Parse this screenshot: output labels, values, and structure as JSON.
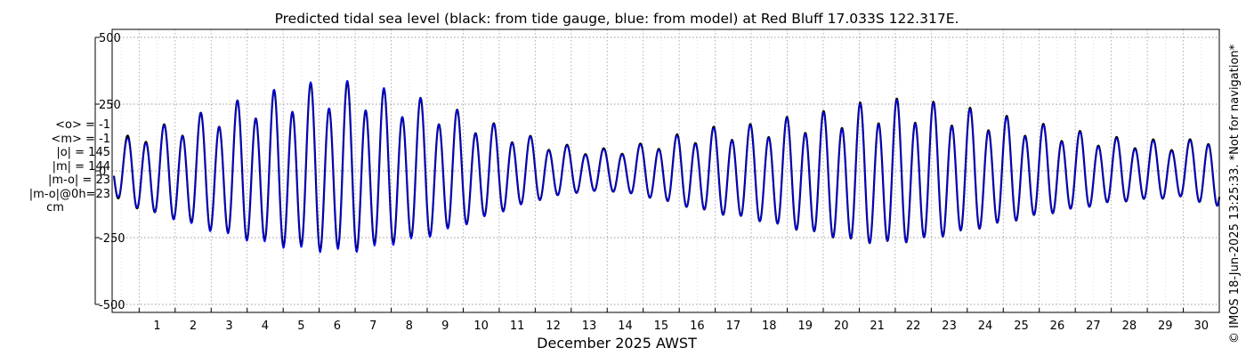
{
  "chart_data": {
    "type": "line",
    "title": "Predicted tidal sea level (black: from tide gauge, blue: from model) at Red Bluff 17.033S 122.317E.",
    "xlabel": "December 2025 AWST",
    "ylabel": "",
    "xlim": [
      0.25,
      31.0
    ],
    "ylim": [
      -530,
      530
    ],
    "xticks": [
      "1",
      "2",
      "3",
      "4",
      "5",
      "6",
      "7",
      "8",
      "9",
      "10",
      "11",
      "12",
      "13",
      "14",
      "15",
      "16",
      "17",
      "18",
      "19",
      "20",
      "21",
      "22",
      "23",
      "24",
      "25",
      "26",
      "27",
      "28",
      "29",
      "30"
    ],
    "yticks": [
      {
        "value": 500,
        "label": "500"
      },
      {
        "value": 250,
        "label": "250"
      },
      {
        "value": 0,
        "label": "0"
      },
      {
        "value": -250,
        "label": "-250"
      },
      {
        "value": -500,
        "label": "-500"
      }
    ],
    "grid": true,
    "series": [
      {
        "color": "#000000",
        "width": 2.2,
        "x_start": 0.3,
        "x_end": 31.0,
        "x": [
          0.3,
          1,
          2,
          3,
          4,
          5,
          6,
          7,
          8,
          9,
          10,
          11,
          12,
          13,
          14,
          15,
          16,
          17,
          18,
          19,
          20,
          21,
          22,
          23,
          24,
          25,
          26,
          27,
          28,
          29,
          30,
          31
        ],
        "amplitude": [
          105,
          150,
          185,
          230,
          270,
          300,
          320,
          320,
          290,
          260,
          215,
          165,
          120,
          90,
          80,
          100,
          135,
          165,
          180,
          210,
          235,
          265,
          275,
          260,
          235,
          205,
          175,
          150,
          125,
          115,
          105,
          150
        ],
        "mean": [
          -3,
          -6,
          -12,
          -12,
          -10,
          -6,
          -4,
          -4,
          -6,
          -8,
          -6,
          -4,
          -2,
          -1,
          -1,
          -2,
          -4,
          -8,
          -15,
          -20,
          -25,
          -25,
          -20,
          -15,
          -10,
          -8,
          -6,
          -6,
          -4,
          -2,
          -2,
          0
        ]
      },
      {
        "color": "#0000ee",
        "width": 1.5,
        "x_start": 0.3,
        "x_end": 31.0,
        "x": [
          0.3,
          1,
          2,
          3,
          4,
          5,
          6,
          7,
          8,
          9,
          10,
          11,
          12,
          13,
          14,
          15,
          16,
          17,
          18,
          19,
          20,
          21,
          22,
          23,
          24,
          25,
          26,
          27,
          28,
          29,
          30,
          31
        ],
        "amplitude": [
          95,
          145,
          185,
          232,
          272,
          305,
          325,
          325,
          295,
          262,
          215,
          165,
          120,
          88,
          78,
          98,
          132,
          162,
          178,
          208,
          232,
          262,
          272,
          258,
          232,
          202,
          172,
          148,
          122,
          112,
          102,
          148
        ],
        "mean": [
          -5,
          -8,
          -14,
          -14,
          -12,
          -8,
          -6,
          -6,
          -8,
          -10,
          -8,
          -6,
          -4,
          -3,
          -3,
          -4,
          -6,
          -10,
          -17,
          -22,
          -27,
          -27,
          -22,
          -17,
          -12,
          -10,
          -8,
          -8,
          -6,
          -4,
          -4,
          -2
        ]
      }
    ],
    "annotation": [
      "<o> = -1",
      "<m> = -1",
      "|o| = 145",
      "|m| = 144",
      "|m-o| = 23",
      "|m-o|@0h=23",
      "cm"
    ]
  },
  "credit": "© IMOS 18-Jun-2025 13:25:33. *Not for navigation*"
}
